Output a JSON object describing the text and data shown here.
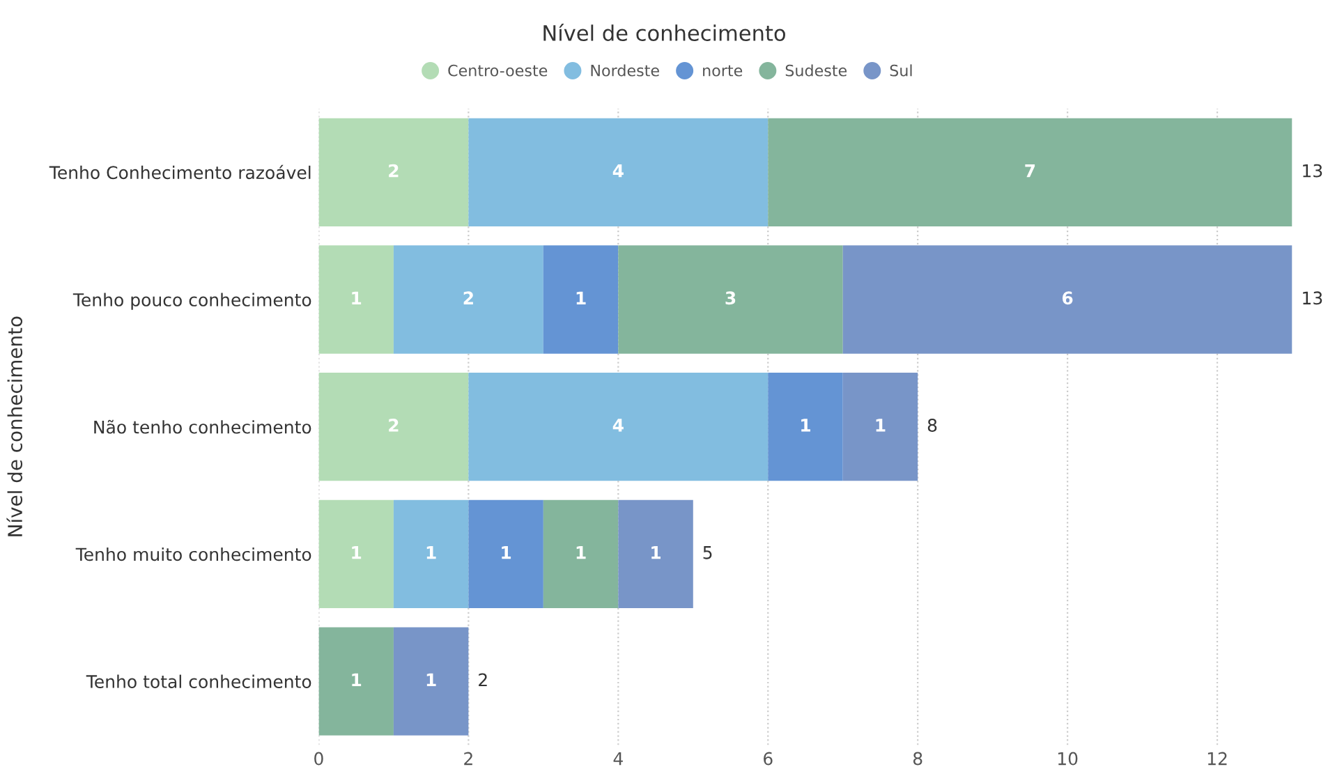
{
  "chart_data": {
    "type": "bar",
    "orientation": "horizontal",
    "stacked": true,
    "title": "Nível de conhecimento",
    "ylabel": "Nível de conhecimento",
    "categories": [
      "Tenho Conhecimento razoável",
      "Tenho pouco conhecimento",
      "Não tenho conhecimento",
      "Tenho muito conhecimento",
      "Tenho total conhecimento"
    ],
    "series": [
      {
        "name": "Centro-oeste",
        "color": "#b3dcb5",
        "values": [
          2,
          1,
          2,
          1,
          null
        ]
      },
      {
        "name": "Nordeste",
        "color": "#82bde0",
        "values": [
          4,
          2,
          4,
          1,
          null
        ]
      },
      {
        "name": "norte",
        "color": "#6494d4",
        "values": [
          null,
          1,
          1,
          1,
          null
        ]
      },
      {
        "name": "Sudeste",
        "color": "#84b59c",
        "values": [
          7,
          3,
          null,
          1,
          1
        ]
      },
      {
        "name": "Sul",
        "color": "#7895c8",
        "values": [
          null,
          6,
          1,
          1,
          1
        ]
      }
    ],
    "xlim": [
      0,
      13
    ],
    "xticks": [
      0,
      2,
      4,
      6,
      8,
      10,
      12
    ],
    "grid": "x",
    "legend": "top",
    "data_labels": true,
    "totals": [
      "13",
      "13",
      "8",
      "5",
      "2"
    ]
  }
}
